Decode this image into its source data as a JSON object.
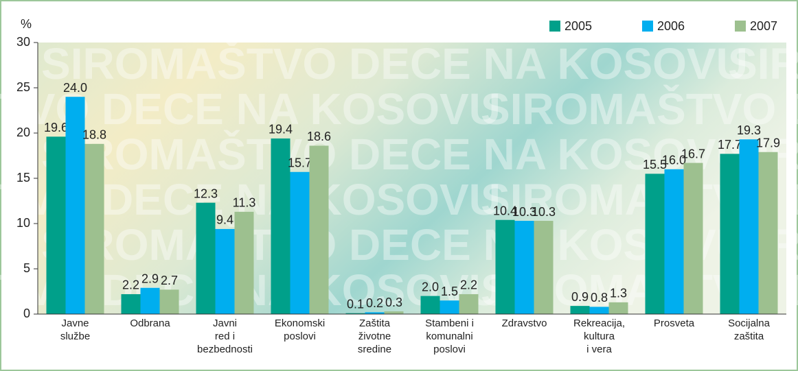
{
  "chart_data": {
    "type": "bar",
    "ylabel": "%",
    "watermark": "SIROMAŠTVO DECE NA KOSOVU",
    "categories": [
      "Javne\nslužbe",
      "Odbrana",
      "Javni\nred i\nbezbednosti",
      "Ekonomski\nposlovi",
      "Zaštita\nživotne\nsredine",
      "Stambeni i\nkomunalni\nposlovi",
      "Zdravstvo",
      "Rekreacija,\nkultura\ni vera",
      "Prosveta",
      "Socijalna\nzaštita"
    ],
    "series": [
      {
        "name": "2005",
        "color": "#00a08a",
        "values": [
          19.6,
          2.2,
          12.3,
          19.4,
          0.1,
          2.0,
          10.4,
          0.9,
          15.5,
          17.7
        ],
        "value_labels": [
          "19.6",
          "2.2",
          "12.3",
          "19.4",
          "0.1",
          "2.0",
          "10.4",
          "0.9",
          "15.5",
          "17.7"
        ]
      },
      {
        "name": "2006",
        "color": "#00aeef",
        "values": [
          24.0,
          2.9,
          9.4,
          15.7,
          0.2,
          1.5,
          10.3,
          0.8,
          16.0,
          19.3
        ],
        "value_labels": [
          "24.0",
          "2.9",
          "9.4",
          "15.7",
          "0.2",
          "1.5",
          "10.3",
          "0.8",
          "16.0",
          "19.3"
        ]
      },
      {
        "name": "2007",
        "color": "#9dc08f",
        "values": [
          18.8,
          2.7,
          11.3,
          18.6,
          0.3,
          2.2,
          10.3,
          1.3,
          16.7,
          17.9
        ],
        "value_labels": [
          "18.8",
          "2.7",
          "11.3",
          "18.6",
          "0.3",
          "2.2",
          "10.3",
          "1.3",
          "16.7",
          "17.9"
        ]
      }
    ],
    "ylim": [
      0,
      30
    ],
    "yticks": [
      0,
      5,
      10,
      15,
      20,
      25,
      30
    ],
    "legend": "top-right"
  }
}
